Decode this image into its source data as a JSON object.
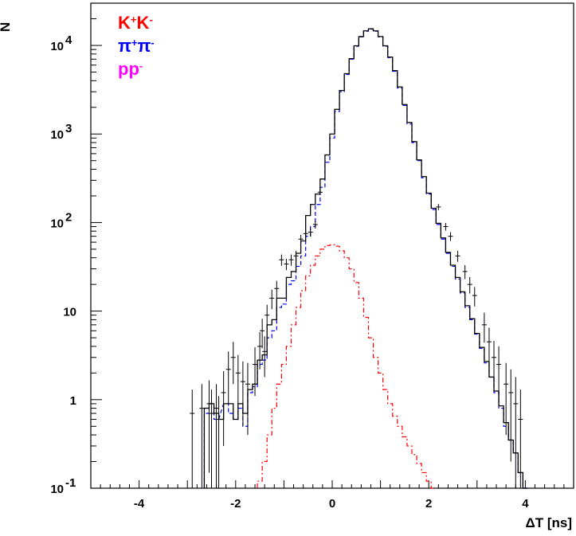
{
  "chart_data": {
    "type": "line",
    "xlabel": "ΔT [ns]",
    "ylabel": "N",
    "xlim": [
      -5,
      5
    ],
    "ylim": [
      0.1,
      30000
    ],
    "yscale": "log",
    "x_ticks": [
      -4,
      -2,
      0,
      2,
      4
    ],
    "y_ticks": [
      {
        "value": 0.1,
        "base": "10",
        "exp": "-1"
      },
      {
        "value": 1,
        "base": "1",
        "exp": ""
      },
      {
        "value": 10,
        "base": "10",
        "exp": ""
      },
      {
        "value": 100,
        "base": "10",
        "exp": "2"
      },
      {
        "value": 1000,
        "base": "10",
        "exp": "3"
      },
      {
        "value": 10000,
        "base": "10",
        "exp": "4"
      }
    ],
    "grid": false,
    "legend_position": "top-left",
    "legend": [
      {
        "base": "K",
        "sup1": "+",
        "mid": "K",
        "sup2": "-",
        "color": "#ff0000"
      },
      {
        "base": "π",
        "sup1": "+",
        "mid": "π",
        "sup2": "-",
        "color": "#0000ff"
      },
      {
        "base": "p",
        "sup1": "",
        "mid": "p",
        "sup2": "-",
        "color": "#ff00ff"
      }
    ],
    "series": [
      {
        "name": "K+K-",
        "style": "dash-dot",
        "color": "#ff0000",
        "x": [
          -1.5,
          -1.4,
          -1.3,
          -1.2,
          -1.1,
          -1.0,
          -0.9,
          -0.8,
          -0.7,
          -0.6,
          -0.5,
          -0.4,
          -0.3,
          -0.2,
          -0.1,
          0.0,
          0.1,
          0.2,
          0.3,
          0.4,
          0.5,
          0.6,
          0.7,
          0.8,
          0.9,
          1.0,
          1.1,
          1.2,
          1.3,
          1.4,
          1.5,
          1.6,
          1.7,
          1.8,
          1.9,
          2.0,
          2.1
        ],
        "y": [
          0.12,
          0.2,
          0.4,
          0.8,
          1.5,
          2.5,
          4,
          7,
          11,
          17,
          25,
          33,
          42,
          50,
          55,
          56,
          54,
          48,
          40,
          30,
          21,
          14,
          8.5,
          5,
          3,
          2,
          1.3,
          0.9,
          0.65,
          0.5,
          0.38,
          0.3,
          0.24,
          0.19,
          0.15,
          0.12,
          0.1
        ]
      },
      {
        "name": "π+π-",
        "style": "dashed",
        "color": "#0000ff",
        "x": [
          -2.6,
          -2.5,
          -2.4,
          -2.2,
          -2.1,
          -2.0,
          -1.9,
          -1.8,
          -1.7,
          -1.6,
          -1.5,
          -1.4,
          -1.3,
          -1.2,
          -1.1,
          -1.0,
          -0.9,
          -0.8,
          -0.7,
          -0.6,
          -0.5,
          -0.4,
          -0.3,
          -0.2,
          -0.1,
          0.0,
          0.1,
          0.2,
          0.3,
          0.4,
          0.5,
          0.6,
          0.7,
          0.8,
          0.9,
          1.0,
          1.1,
          1.2,
          1.3,
          1.4,
          1.5,
          1.6,
          1.7,
          1.8,
          1.9,
          2.0,
          2.1,
          2.2,
          2.3,
          2.4,
          2.5,
          2.6,
          2.7,
          2.8,
          2.9,
          3.0,
          3.1,
          3.2,
          3.3,
          3.4,
          3.5,
          3.6,
          3.7,
          3.8,
          3.9,
          4.0
        ],
        "y": [
          0.7,
          0.9,
          0.6,
          0.9,
          0.7,
          0.6,
          0.8,
          0.5,
          1.2,
          1.4,
          2.5,
          2.8,
          5,
          6,
          11,
          12,
          20,
          22,
          32,
          42,
          70,
          90,
          160,
          250,
          480,
          900,
          1800,
          3000,
          4700,
          7000,
          9800,
          12500,
          14500,
          15300,
          14500,
          12500,
          9800,
          7300,
          5100,
          3300,
          2100,
          1300,
          800,
          500,
          320,
          210,
          140,
          95,
          65,
          45,
          32,
          23,
          16,
          11,
          8,
          5.5,
          3.8,
          2.6,
          1.8,
          1.2,
          0.8,
          0.5,
          0.35,
          0.25,
          0.15,
          0.1
        ]
      },
      {
        "name": "sum",
        "style": "solid",
        "color": "#000000",
        "x": [
          -2.6,
          -2.5,
          -2.4,
          -2.3,
          -2.2,
          -2.1,
          -2.0,
          -1.9,
          -1.8,
          -1.7,
          -1.6,
          -1.5,
          -1.4,
          -1.3,
          -1.2,
          -1.1,
          -1.0,
          -0.9,
          -0.8,
          -0.7,
          -0.6,
          -0.5,
          -0.4,
          -0.3,
          -0.2,
          -0.1,
          0.0,
          0.1,
          0.2,
          0.3,
          0.4,
          0.5,
          0.6,
          0.7,
          0.8,
          0.9,
          1.0,
          1.1,
          1.2,
          1.3,
          1.4,
          1.5,
          1.6,
          1.7,
          1.8,
          1.9,
          2.0,
          2.1,
          2.2,
          2.3,
          2.4,
          2.5,
          2.6,
          2.7,
          2.8,
          2.9,
          3.0,
          3.1,
          3.2,
          3.3,
          3.4,
          3.5,
          3.6,
          3.7,
          3.8,
          3.9,
          4.0
        ],
        "y": [
          0.8,
          0.9,
          0.7,
          0.6,
          0.9,
          0.9,
          0.6,
          0.9,
          0.7,
          1.3,
          1.5,
          2.8,
          3.2,
          7,
          8,
          14,
          14,
          24,
          28,
          45,
          62,
          120,
          160,
          210,
          310,
          580,
          1000,
          1900,
          3100,
          4800,
          7100,
          9900,
          12600,
          14600,
          15400,
          14600,
          12600,
          9900,
          7400,
          5200,
          3400,
          2150,
          1350,
          820,
          510,
          330,
          215,
          145,
          98,
          67,
          46,
          33,
          24,
          16.5,
          11.5,
          8.2,
          5.6,
          3.9,
          2.7,
          1.8,
          1.25,
          0.85,
          0.55,
          0.35,
          0.25,
          0.15,
          0.1
        ]
      },
      {
        "name": "data",
        "style": "points",
        "color": "#000000",
        "x": [
          -2.9,
          -2.7,
          -2.55,
          -2.5,
          -2.4,
          -2.35,
          -2.25,
          -2.15,
          -2.05,
          -1.95,
          -1.85,
          -1.75,
          -1.6,
          -1.5,
          -1.45,
          -1.4,
          -1.35,
          -1.25,
          -1.15,
          -1.05,
          -0.95,
          -0.85,
          -0.75,
          -0.65,
          -0.55,
          -0.45,
          -0.35,
          -0.25,
          2.2,
          2.35,
          2.45,
          2.6,
          2.75,
          2.85,
          2.95,
          3.15,
          3.25,
          3.35,
          3.45,
          3.6,
          3.7,
          3.8,
          3.9
        ],
        "y": [
          0.7,
          0.8,
          0.9,
          0.7,
          0.8,
          0.6,
          1.2,
          2.2,
          3,
          2,
          1.6,
          1.5,
          2.5,
          4,
          6,
          3.5,
          9,
          14,
          18,
          38,
          34,
          38,
          42,
          65,
          75,
          78,
          95,
          220,
          150,
          90,
          70,
          42,
          28,
          20,
          15,
          7,
          4.5,
          3,
          2.5,
          1.5,
          1.2,
          0.9,
          0.6
        ],
        "yerr": [
          0.6,
          0.7,
          0.75,
          0.6,
          0.7,
          0.5,
          0.9,
          1.3,
          1.5,
          1.2,
          1.1,
          1.1,
          1.4,
          1.8,
          2.2,
          1.7,
          2.8,
          3.5,
          4,
          5.5,
          5,
          5.5,
          6,
          7.5,
          8,
          8.5,
          9.5,
          14,
          12,
          9,
          8,
          6,
          5,
          4.2,
          3.7,
          2.6,
          2,
          1.6,
          1.5,
          1.1,
          1,
          0.9,
          0.7
        ]
      }
    ]
  }
}
